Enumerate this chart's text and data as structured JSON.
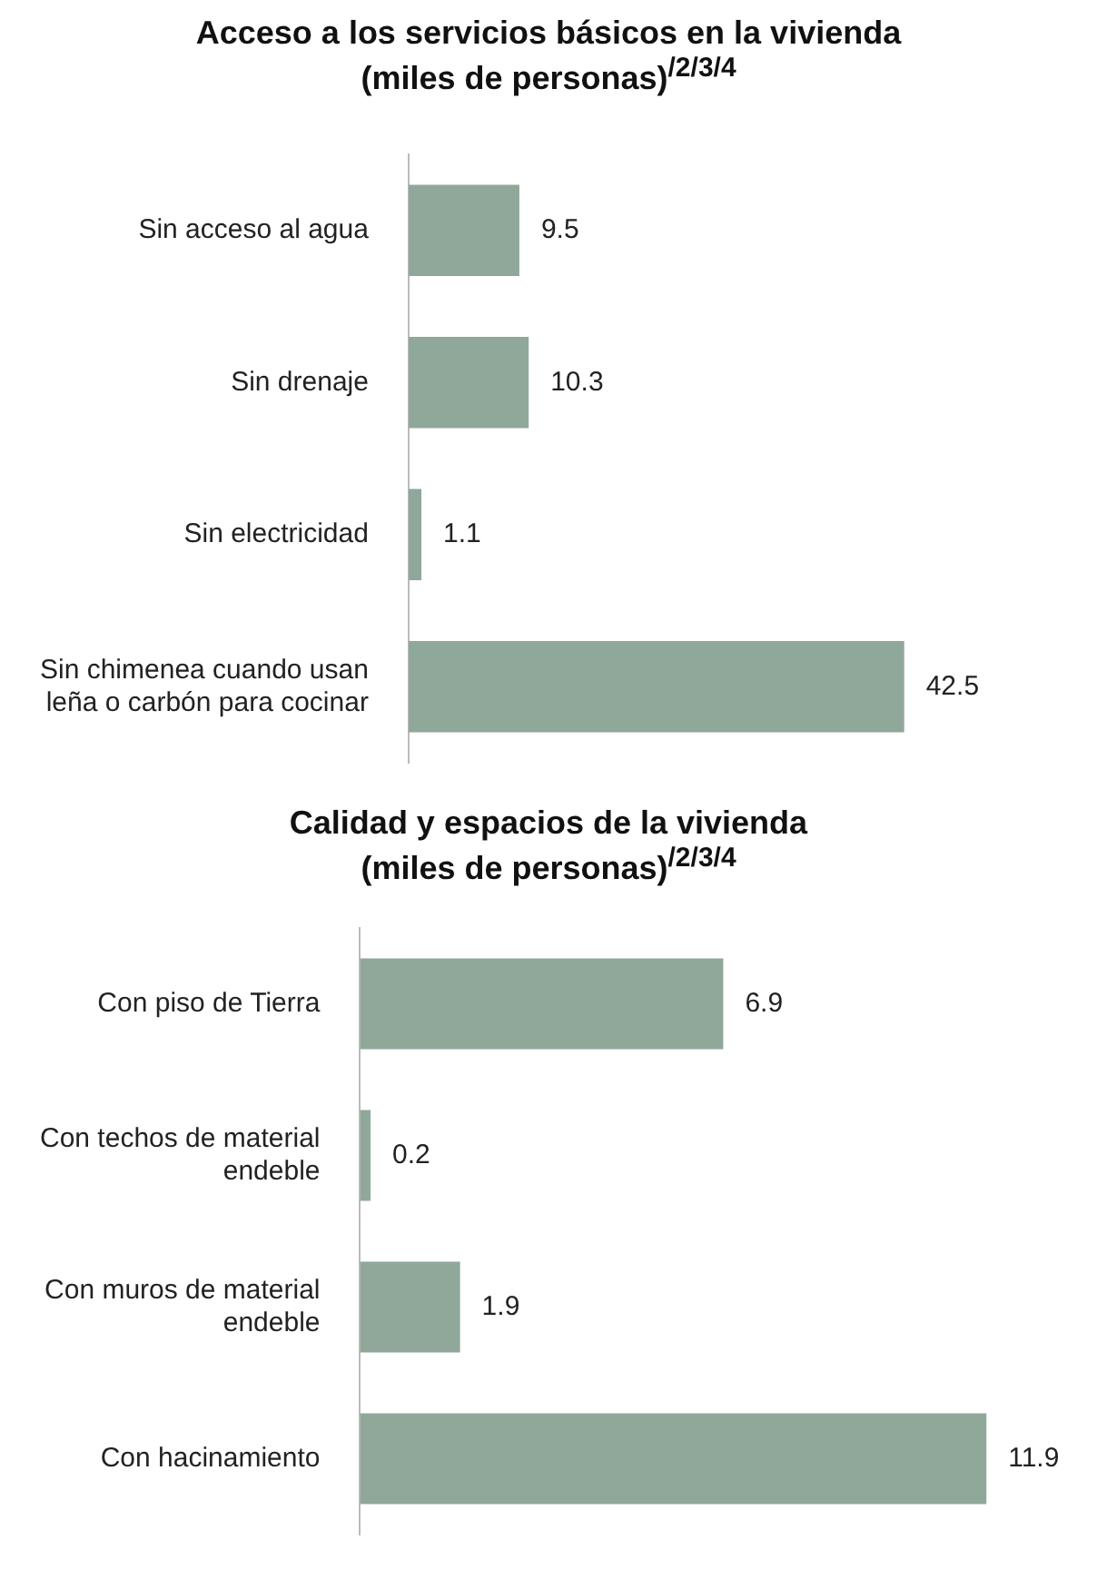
{
  "chart_data": [
    {
      "type": "bar",
      "orientation": "horizontal",
      "title": "Acceso a los servicios básicos en la vivienda",
      "subtitle": "(miles de personas)$^{/2/3/4}$",
      "categories": [
        "Sin acceso al agua",
        "Sin drenaje",
        "Sin electricidad",
        "Sin chimenea cuando usan leña o carbón para cocinar"
      ],
      "values": [
        9.5,
        10.3,
        1.1,
        42.5
      ],
      "color": "#8fa89a",
      "data_labels": true,
      "tick_labels": "y"
    },
    {
      "type": "bar",
      "orientation": "horizontal",
      "title": "Calidad y espacios de la vivienda",
      "subtitle": "(miles de personas)$^{/2/3/4}$",
      "categories": [
        "Con piso de Tierra",
        "Con techos de material endeble",
        "Con muros de material endeble",
        "Con hacinamiento"
      ],
      "values": [
        6.9,
        0.2,
        1.9,
        11.9
      ],
      "color": "#8fa89a",
      "data_labels": true,
      "tick_labels": "y"
    }
  ]
}
